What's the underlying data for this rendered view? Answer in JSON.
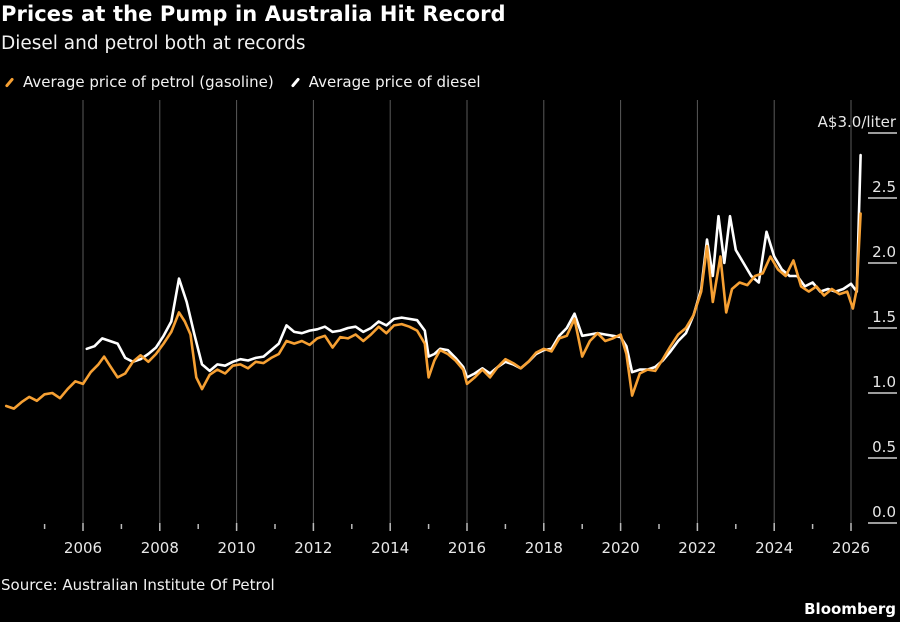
{
  "header": {
    "title": "Prices at the Pump in Australia Hit Record",
    "subtitle": "Diesel and petrol both at records"
  },
  "footer": {
    "source": "Source: Australian Institute Of Petrol",
    "brand": "Bloomberg"
  },
  "colors": {
    "petrol": "#F6A033",
    "diesel": "#FFFFFF",
    "grid": "#5a5a5a",
    "background": "#000000"
  },
  "chart_data": {
    "type": "line",
    "title": "Prices at the Pump in Australia Hit Record",
    "subtitle": "Diesel and petrol both at records",
    "xlabel": "",
    "ylabel": "A$/liter",
    "y_unit_label": "A$3.0/liter",
    "ylim": [
      0,
      3.0
    ],
    "xlim": [
      2004.0,
      2026.6
    ],
    "y_ticks": [
      "0.0",
      "0.5",
      "1.0",
      "1.5",
      "2.0",
      "2.5",
      "A$3.0/liter"
    ],
    "y_tick_values": [
      0,
      0.5,
      1.0,
      1.5,
      2.0,
      2.5,
      3.0
    ],
    "x_ticks": [
      "2006",
      "2008",
      "2010",
      "2012",
      "2014",
      "2016",
      "2018",
      "2020",
      "2022",
      "2024",
      "2026"
    ],
    "x_tick_values": [
      2006,
      2008,
      2010,
      2012,
      2014,
      2016,
      2018,
      2020,
      2022,
      2024,
      2026
    ],
    "x_minor_ticks": [
      2005,
      2007,
      2009,
      2011,
      2013,
      2015,
      2017,
      2019,
      2021,
      2023,
      2025
    ],
    "grid": "vertical at major years",
    "legend_position": "top-left",
    "series": [
      {
        "name": "Average price of petrol (gasoline)",
        "color": "#F6A033",
        "points": [
          [
            2004.0,
            0.9
          ],
          [
            2004.2,
            0.88
          ],
          [
            2004.4,
            0.93
          ],
          [
            2004.6,
            0.97
          ],
          [
            2004.8,
            0.94
          ],
          [
            2005.0,
            0.99
          ],
          [
            2005.2,
            1.0
          ],
          [
            2005.4,
            0.96
          ],
          [
            2005.6,
            1.03
          ],
          [
            2005.8,
            1.09
          ],
          [
            2006.0,
            1.07
          ],
          [
            2006.2,
            1.16
          ],
          [
            2006.4,
            1.22
          ],
          [
            2006.55,
            1.28
          ],
          [
            2006.7,
            1.21
          ],
          [
            2006.9,
            1.12
          ],
          [
            2007.1,
            1.15
          ],
          [
            2007.3,
            1.24
          ],
          [
            2007.5,
            1.29
          ],
          [
            2007.7,
            1.24
          ],
          [
            2007.9,
            1.3
          ],
          [
            2008.1,
            1.38
          ],
          [
            2008.3,
            1.47
          ],
          [
            2008.5,
            1.62
          ],
          [
            2008.65,
            1.55
          ],
          [
            2008.8,
            1.45
          ],
          [
            2008.95,
            1.12
          ],
          [
            2009.1,
            1.03
          ],
          [
            2009.3,
            1.14
          ],
          [
            2009.5,
            1.18
          ],
          [
            2009.7,
            1.15
          ],
          [
            2009.9,
            1.21
          ],
          [
            2010.1,
            1.22
          ],
          [
            2010.3,
            1.19
          ],
          [
            2010.5,
            1.24
          ],
          [
            2010.7,
            1.23
          ],
          [
            2010.9,
            1.27
          ],
          [
            2011.1,
            1.3
          ],
          [
            2011.3,
            1.4
          ],
          [
            2011.5,
            1.38
          ],
          [
            2011.7,
            1.4
          ],
          [
            2011.9,
            1.37
          ],
          [
            2012.1,
            1.42
          ],
          [
            2012.3,
            1.44
          ],
          [
            2012.5,
            1.35
          ],
          [
            2012.7,
            1.43
          ],
          [
            2012.9,
            1.42
          ],
          [
            2013.1,
            1.45
          ],
          [
            2013.3,
            1.4
          ],
          [
            2013.5,
            1.45
          ],
          [
            2013.7,
            1.51
          ],
          [
            2013.9,
            1.46
          ],
          [
            2014.1,
            1.52
          ],
          [
            2014.3,
            1.53
          ],
          [
            2014.5,
            1.51
          ],
          [
            2014.7,
            1.48
          ],
          [
            2014.9,
            1.38
          ],
          [
            2015.0,
            1.12
          ],
          [
            2015.15,
            1.25
          ],
          [
            2015.3,
            1.33
          ],
          [
            2015.5,
            1.3
          ],
          [
            2015.7,
            1.25
          ],
          [
            2015.9,
            1.18
          ],
          [
            2016.0,
            1.07
          ],
          [
            2016.2,
            1.12
          ],
          [
            2016.4,
            1.18
          ],
          [
            2016.6,
            1.12
          ],
          [
            2016.8,
            1.2
          ],
          [
            2017.0,
            1.26
          ],
          [
            2017.2,
            1.23
          ],
          [
            2017.4,
            1.19
          ],
          [
            2017.6,
            1.24
          ],
          [
            2017.8,
            1.31
          ],
          [
            2018.0,
            1.34
          ],
          [
            2018.2,
            1.32
          ],
          [
            2018.4,
            1.42
          ],
          [
            2018.6,
            1.44
          ],
          [
            2018.8,
            1.57
          ],
          [
            2019.0,
            1.28
          ],
          [
            2019.2,
            1.4
          ],
          [
            2019.4,
            1.46
          ],
          [
            2019.6,
            1.4
          ],
          [
            2019.8,
            1.42
          ],
          [
            2020.0,
            1.45
          ],
          [
            2020.15,
            1.3
          ],
          [
            2020.3,
            0.98
          ],
          [
            2020.5,
            1.15
          ],
          [
            2020.7,
            1.18
          ],
          [
            2020.9,
            1.17
          ],
          [
            2021.1,
            1.26
          ],
          [
            2021.3,
            1.36
          ],
          [
            2021.5,
            1.45
          ],
          [
            2021.7,
            1.5
          ],
          [
            2021.9,
            1.6
          ],
          [
            2022.1,
            1.78
          ],
          [
            2022.25,
            2.13
          ],
          [
            2022.4,
            1.7
          ],
          [
            2022.6,
            2.05
          ],
          [
            2022.75,
            1.62
          ],
          [
            2022.9,
            1.8
          ],
          [
            2023.1,
            1.85
          ],
          [
            2023.3,
            1.83
          ],
          [
            2023.5,
            1.9
          ],
          [
            2023.7,
            1.92
          ],
          [
            2023.9,
            2.05
          ],
          [
            2024.1,
            1.95
          ],
          [
            2024.3,
            1.9
          ],
          [
            2024.5,
            2.02
          ],
          [
            2024.7,
            1.82
          ],
          [
            2024.9,
            1.78
          ],
          [
            2025.1,
            1.82
          ],
          [
            2025.3,
            1.75
          ],
          [
            2025.5,
            1.8
          ],
          [
            2025.7,
            1.76
          ],
          [
            2025.9,
            1.78
          ],
          [
            2026.05,
            1.65
          ],
          [
            2026.15,
            1.8
          ],
          [
            2026.25,
            2.38
          ]
        ]
      },
      {
        "name": "Average price of diesel",
        "color": "#FFFFFF",
        "points": [
          [
            2006.1,
            1.34
          ],
          [
            2006.3,
            1.36
          ],
          [
            2006.5,
            1.42
          ],
          [
            2006.7,
            1.4
          ],
          [
            2006.9,
            1.38
          ],
          [
            2007.1,
            1.27
          ],
          [
            2007.3,
            1.24
          ],
          [
            2007.5,
            1.26
          ],
          [
            2007.7,
            1.3
          ],
          [
            2007.9,
            1.35
          ],
          [
            2008.1,
            1.44
          ],
          [
            2008.3,
            1.55
          ],
          [
            2008.5,
            1.88
          ],
          [
            2008.7,
            1.7
          ],
          [
            2008.9,
            1.45
          ],
          [
            2009.1,
            1.22
          ],
          [
            2009.3,
            1.17
          ],
          [
            2009.5,
            1.22
          ],
          [
            2009.7,
            1.21
          ],
          [
            2009.9,
            1.24
          ],
          [
            2010.1,
            1.26
          ],
          [
            2010.3,
            1.25
          ],
          [
            2010.5,
            1.27
          ],
          [
            2010.7,
            1.28
          ],
          [
            2010.9,
            1.33
          ],
          [
            2011.1,
            1.38
          ],
          [
            2011.3,
            1.52
          ],
          [
            2011.5,
            1.47
          ],
          [
            2011.7,
            1.46
          ],
          [
            2011.9,
            1.48
          ],
          [
            2012.1,
            1.49
          ],
          [
            2012.3,
            1.51
          ],
          [
            2012.5,
            1.47
          ],
          [
            2012.7,
            1.48
          ],
          [
            2012.9,
            1.5
          ],
          [
            2013.1,
            1.51
          ],
          [
            2013.3,
            1.47
          ],
          [
            2013.5,
            1.5
          ],
          [
            2013.7,
            1.55
          ],
          [
            2013.9,
            1.52
          ],
          [
            2014.1,
            1.57
          ],
          [
            2014.3,
            1.58
          ],
          [
            2014.5,
            1.57
          ],
          [
            2014.7,
            1.56
          ],
          [
            2014.9,
            1.48
          ],
          [
            2015.0,
            1.28
          ],
          [
            2015.15,
            1.3
          ],
          [
            2015.3,
            1.34
          ],
          [
            2015.5,
            1.33
          ],
          [
            2015.7,
            1.27
          ],
          [
            2015.9,
            1.2
          ],
          [
            2016.0,
            1.12
          ],
          [
            2016.2,
            1.15
          ],
          [
            2016.4,
            1.19
          ],
          [
            2016.6,
            1.15
          ],
          [
            2016.8,
            1.2
          ],
          [
            2017.0,
            1.24
          ],
          [
            2017.2,
            1.22
          ],
          [
            2017.4,
            1.19
          ],
          [
            2017.6,
            1.24
          ],
          [
            2017.8,
            1.3
          ],
          [
            2018.0,
            1.33
          ],
          [
            2018.2,
            1.34
          ],
          [
            2018.4,
            1.44
          ],
          [
            2018.6,
            1.5
          ],
          [
            2018.8,
            1.61
          ],
          [
            2019.0,
            1.44
          ],
          [
            2019.2,
            1.45
          ],
          [
            2019.4,
            1.46
          ],
          [
            2019.6,
            1.45
          ],
          [
            2019.8,
            1.44
          ],
          [
            2020.0,
            1.43
          ],
          [
            2020.15,
            1.36
          ],
          [
            2020.3,
            1.16
          ],
          [
            2020.5,
            1.18
          ],
          [
            2020.7,
            1.18
          ],
          [
            2020.9,
            1.2
          ],
          [
            2021.1,
            1.25
          ],
          [
            2021.3,
            1.32
          ],
          [
            2021.5,
            1.4
          ],
          [
            2021.7,
            1.46
          ],
          [
            2021.9,
            1.6
          ],
          [
            2022.1,
            1.8
          ],
          [
            2022.25,
            2.18
          ],
          [
            2022.4,
            1.9
          ],
          [
            2022.55,
            2.36
          ],
          [
            2022.7,
            2.0
          ],
          [
            2022.85,
            2.36
          ],
          [
            2023.0,
            2.1
          ],
          [
            2023.2,
            2.0
          ],
          [
            2023.4,
            1.9
          ],
          [
            2023.6,
            1.85
          ],
          [
            2023.8,
            2.24
          ],
          [
            2024.0,
            2.05
          ],
          [
            2024.2,
            1.95
          ],
          [
            2024.4,
            1.9
          ],
          [
            2024.6,
            1.9
          ],
          [
            2024.8,
            1.82
          ],
          [
            2025.0,
            1.85
          ],
          [
            2025.2,
            1.78
          ],
          [
            2025.4,
            1.8
          ],
          [
            2025.6,
            1.78
          ],
          [
            2025.8,
            1.8
          ],
          [
            2026.0,
            1.84
          ],
          [
            2026.15,
            1.78
          ],
          [
            2026.25,
            2.83
          ]
        ]
      }
    ]
  }
}
